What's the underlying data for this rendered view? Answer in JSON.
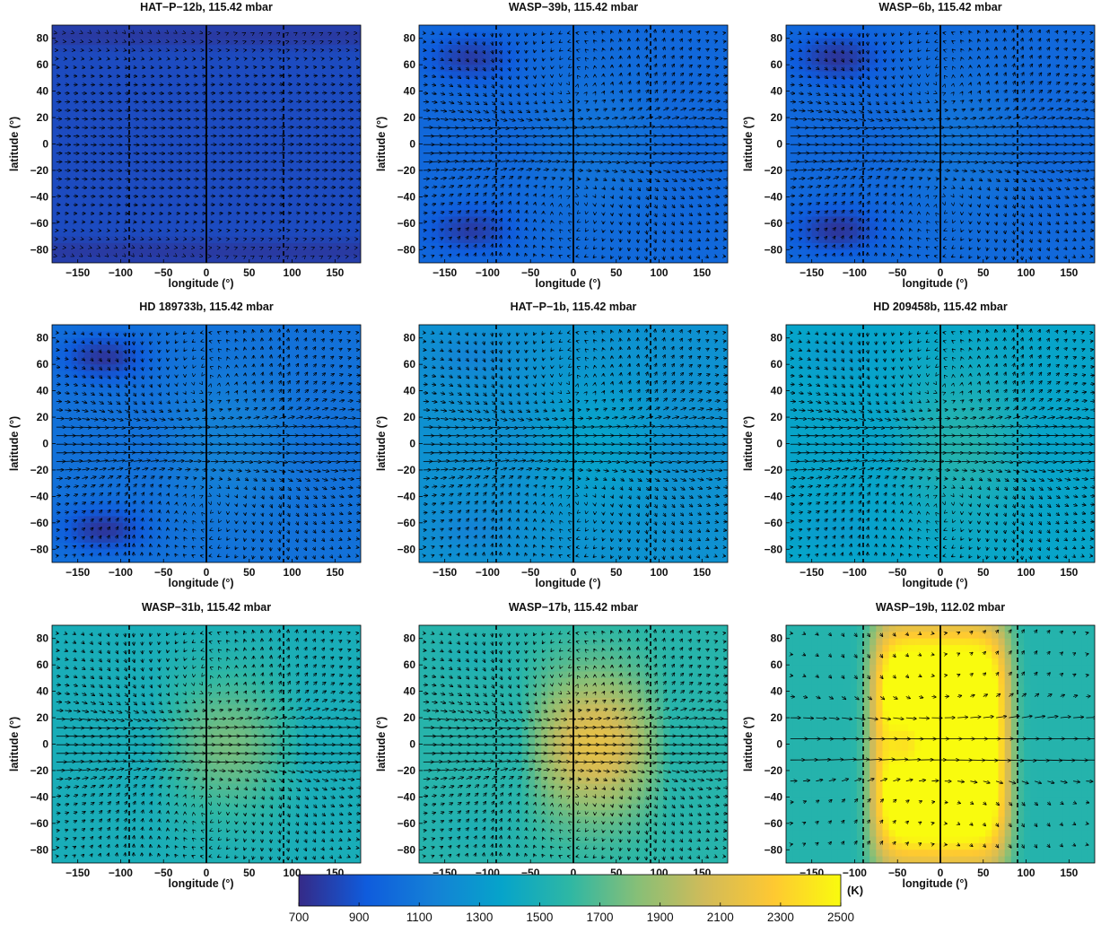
{
  "chart_data": [
    {
      "type": "heatmap",
      "title": "HAT−P−12b, 115.42 mbar",
      "xlabel": "longitude (°)",
      "ylabel": "latitude (°)",
      "xlim": [
        -180,
        180
      ],
      "ylim": [
        -90,
        90
      ],
      "xticks": [
        "−150",
        "−100",
        "−50",
        "0",
        "50",
        "100",
        "150"
      ],
      "yticks": [
        "80",
        "60",
        "40",
        "20",
        "0",
        "−20",
        "−40",
        "−60",
        "−80"
      ],
      "temperature_base_K": 850,
      "hot_spot_K": 0,
      "high_latitude_anomaly_K": -80,
      "wind_style": "zonal-weak"
    },
    {
      "type": "heatmap",
      "title": "WASP−39b, 115.42 mbar",
      "xlabel": "longitude (°)",
      "ylabel": "latitude (°)",
      "xlim": [
        -180,
        180
      ],
      "ylim": [
        -90,
        90
      ],
      "xticks": [
        "−150",
        "−100",
        "−50",
        "0",
        "50",
        "100",
        "150"
      ],
      "yticks": [
        "80",
        "60",
        "40",
        "20",
        "0",
        "−20",
        "−40",
        "−60",
        "−80"
      ],
      "temperature_base_K": 1000,
      "hot_spot_K": 80,
      "cold_vortex_K": -220,
      "wind_style": "jet-vortex"
    },
    {
      "type": "heatmap",
      "title": "WASP−6b, 115.42 mbar",
      "xlabel": "longitude (°)",
      "ylabel": "latitude (°)",
      "xlim": [
        -180,
        180
      ],
      "ylim": [
        -90,
        90
      ],
      "xticks": [
        "−150",
        "−100",
        "−50",
        "0",
        "50",
        "100",
        "150"
      ],
      "yticks": [
        "80",
        "60",
        "40",
        "20",
        "0",
        "−20",
        "−40",
        "−60",
        "−80"
      ],
      "temperature_base_K": 1000,
      "hot_spot_K": 80,
      "cold_vortex_K": -250,
      "wind_style": "jet-vortex"
    },
    {
      "type": "heatmap",
      "title": "HD 189733b, 115.42 mbar",
      "xlabel": "longitude (°)",
      "ylabel": "latitude (°)",
      "xlim": [
        -180,
        180
      ],
      "ylim": [
        -90,
        90
      ],
      "xticks": [
        "−150",
        "−100",
        "−50",
        "0",
        "50",
        "100",
        "150"
      ],
      "yticks": [
        "80",
        "60",
        "40",
        "20",
        "0",
        "−20",
        "−40",
        "−60",
        "−80"
      ],
      "temperature_base_K": 1050,
      "hot_spot_K": 120,
      "cold_vortex_K": -300,
      "wind_style": "jet-vortex"
    },
    {
      "type": "heatmap",
      "title": "HAT−P−1b, 115.42 mbar",
      "xlabel": "longitude (°)",
      "ylabel": "latitude (°)",
      "xlim": [
        -180,
        180
      ],
      "ylim": [
        -90,
        90
      ],
      "xticks": [
        "−150",
        "−100",
        "−50",
        "0",
        "50",
        "100",
        "150"
      ],
      "yticks": [
        "80",
        "60",
        "40",
        "20",
        "0",
        "−20",
        "−40",
        "−60",
        "−80"
      ],
      "temperature_base_K": 1250,
      "hot_spot_K": 130,
      "cold_vortex_K": -80,
      "wind_style": "jet-vortex"
    },
    {
      "type": "heatmap",
      "title": "HD 209458b, 115.42 mbar",
      "xlabel": "longitude (°)",
      "ylabel": "latitude (°)",
      "xlim": [
        -180,
        180
      ],
      "ylim": [
        -90,
        90
      ],
      "xticks": [
        "−150",
        "−100",
        "−50",
        "0",
        "50",
        "100",
        "150"
      ],
      "yticks": [
        "80",
        "60",
        "40",
        "20",
        "0",
        "−20",
        "−40",
        "−60",
        "−80"
      ],
      "temperature_base_K": 1380,
      "hot_spot_K": 180,
      "cold_vortex_K": -60,
      "wind_style": "jet-vortex"
    },
    {
      "type": "heatmap",
      "title": "WASP−31b, 115.42 mbar",
      "xlabel": "longitude (°)",
      "ylabel": "latitude (°)",
      "xlim": [
        -180,
        180
      ],
      "ylim": [
        -90,
        90
      ],
      "xticks": [
        "−150",
        "−100",
        "−50",
        "0",
        "50",
        "100",
        "150"
      ],
      "yticks": [
        "80",
        "60",
        "40",
        "20",
        "0",
        "−20",
        "−40",
        "−60",
        "−80"
      ],
      "temperature_base_K": 1480,
      "hot_spot_K": 330,
      "cold_vortex_K": 0,
      "wind_style": "jet-strong"
    },
    {
      "type": "heatmap",
      "title": "WASP−17b, 115.42 mbar",
      "xlabel": "longitude (°)",
      "ylabel": "latitude (°)",
      "xlim": [
        -180,
        180
      ],
      "ylim": [
        -90,
        90
      ],
      "xticks": [
        "−150",
        "−100",
        "−50",
        "0",
        "50",
        "100",
        "150"
      ],
      "yticks": [
        "80",
        "60",
        "40",
        "20",
        "0",
        "−20",
        "−40",
        "−60",
        "−80"
      ],
      "temperature_base_K": 1560,
      "hot_spot_K": 650,
      "cold_vortex_K": -50,
      "wind_style": "jet-strong"
    },
    {
      "type": "heatmap",
      "title": "WASP−19b, 112.02 mbar",
      "xlabel": "longitude (°)",
      "ylabel": "latitude (°)",
      "xlim": [
        -180,
        180
      ],
      "ylim": [
        -90,
        90
      ],
      "xticks": [
        "−150",
        "−100",
        "−50",
        "0",
        "50",
        "100",
        "150"
      ],
      "yticks": [
        "80",
        "60",
        "40",
        "20",
        "0",
        "−20",
        "−40",
        "−60",
        "−80"
      ],
      "temperature_base_K": 1550,
      "hot_spot_K": 1300,
      "cold_vortex_K": 0,
      "wind_style": "sparse"
    }
  ],
  "colorbar": {
    "unit": "(K)",
    "min": 700,
    "max": 2500,
    "ticks": [
      "700",
      "900",
      "1100",
      "1300",
      "1500",
      "1700",
      "1900",
      "2100",
      "2300",
      "2500"
    ],
    "colormap": [
      "#352a87",
      "#0f5cdd",
      "#1481d6",
      "#06a4ca",
      "#2eb7a4",
      "#87bf77",
      "#d1bb59",
      "#fec832",
      "#f9fb0e"
    ]
  }
}
